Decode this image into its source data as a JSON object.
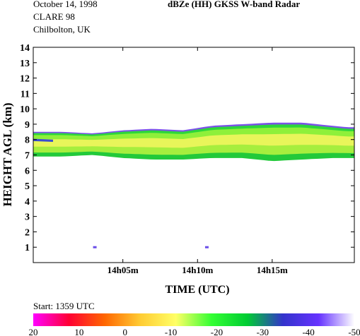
{
  "header": {
    "date": "October 14, 1998",
    "campaign": "CLARE 98",
    "site": "Chilbolton, UK"
  },
  "chart_data": {
    "type": "heatmap",
    "title": "dBZe (HH)   GKSS  W-band Radar",
    "xlabel": "TIME (UTC)",
    "ylabel": "HEIGHT AGL (km)",
    "x_range_utc": [
      "13h59m",
      "14h20m"
    ],
    "x_ticks": [
      {
        "label": "14h05m",
        "minutes_after_start": 6
      },
      {
        "label": "14h10m",
        "minutes_after_start": 11
      },
      {
        "label": "14h15m",
        "minutes_after_start": 16
      }
    ],
    "ylim": [
      0,
      14
    ],
    "y_ticks": [
      1,
      2,
      3,
      4,
      5,
      6,
      7,
      8,
      9,
      10,
      11,
      12,
      13,
      14
    ],
    "start_label": "Start: 1359 UTC",
    "colorbar": {
      "ticks": [
        "20",
        "10",
        "0",
        "-10",
        "-20",
        "-30",
        "-40",
        "-50"
      ],
      "colors": [
        "#ff00ff",
        "#ff0033",
        "#ff6600",
        "#ffcc33",
        "#ffff66",
        "#33ff33",
        "#00cc33",
        "#3333cc",
        "#6633ff",
        "#ffffff"
      ]
    },
    "cloud_layer": {
      "minutes_after_start": [
        0,
        2,
        4,
        6,
        8,
        10,
        12,
        14,
        16,
        18,
        20,
        21
      ],
      "top_km": [
        8.5,
        8.5,
        8.4,
        8.6,
        8.7,
        8.6,
        8.9,
        9.0,
        9.1,
        9.1,
        8.9,
        8.8
      ],
      "base_km": [
        6.9,
        6.9,
        7.0,
        6.8,
        6.7,
        6.7,
        6.8,
        6.8,
        6.6,
        6.7,
        6.8,
        6.8
      ]
    },
    "isolated_echoes": [
      {
        "minutes_after_start": 4.1,
        "height_km": 1.0
      },
      {
        "minutes_after_start": 11.6,
        "height_km": 1.0
      }
    ]
  }
}
